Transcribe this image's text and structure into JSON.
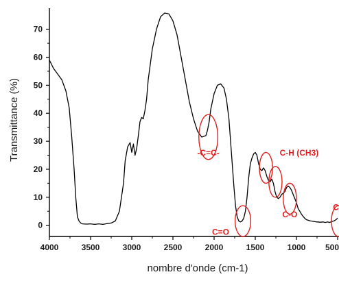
{
  "chart_data": {
    "type": "line",
    "title": "",
    "xlabel": "nombre d'onde (cm-1)",
    "ylabel": "Transmittance (%)",
    "xlim": [
      4000,
      500
    ],
    "ylim": [
      -4,
      78
    ],
    "x_reversed": true,
    "grid": false,
    "legend": "none",
    "line_color": "#000000",
    "annotation_color": "#e02020",
    "x_ticks": [
      4000,
      3500,
      3000,
      2500,
      2000,
      1500,
      1000,
      500
    ],
    "y_ticks": [
      0,
      10,
      20,
      30,
      40,
      50,
      60,
      70
    ],
    "series": [
      {
        "x": [
          4000,
          3950,
          3900,
          3850,
          3800,
          3760,
          3730,
          3700,
          3680,
          3660,
          3640,
          3620,
          3600,
          3550,
          3500,
          3450,
          3400,
          3350,
          3300,
          3250,
          3200,
          3150,
          3100,
          3080,
          3050,
          3020,
          3000,
          2980,
          2960,
          2940,
          2920,
          2900,
          2880,
          2860,
          2840,
          2820,
          2800,
          2750,
          2700,
          2650,
          2600,
          2550,
          2500,
          2450,
          2400,
          2350,
          2300,
          2250,
          2200,
          2150,
          2100,
          2080,
          2060,
          2040,
          2000,
          1960,
          1920,
          1880,
          1850,
          1820,
          1800,
          1780,
          1760,
          1740,
          1720,
          1700,
          1680,
          1660,
          1640,
          1620,
          1600,
          1580,
          1560,
          1540,
          1520,
          1500,
          1480,
          1460,
          1440,
          1420,
          1400,
          1380,
          1360,
          1340,
          1320,
          1300,
          1280,
          1260,
          1240,
          1220,
          1200,
          1180,
          1160,
          1140,
          1120,
          1100,
          1080,
          1060,
          1040,
          1020,
          1000,
          980,
          960,
          940,
          920,
          900,
          880,
          860,
          840,
          820,
          800,
          780,
          760,
          740,
          720,
          700,
          680,
          650,
          620,
          600,
          580,
          560,
          540,
          520,
          500
        ],
        "y": [
          59,
          56,
          54,
          52,
          48,
          42,
          32,
          20,
          10,
          3,
          1.5,
          0.8,
          0.5,
          0.4,
          0.5,
          0.3,
          0.5,
          0.3,
          0.6,
          0.8,
          1.5,
          5,
          15,
          23,
          28,
          29.5,
          26,
          29,
          25,
          27.5,
          32,
          37,
          38.5,
          38,
          41,
          45,
          52,
          63,
          70,
          74.5,
          75.8,
          75.5,
          73,
          68,
          60,
          52,
          44,
          38,
          33.5,
          31.5,
          32,
          34,
          37,
          41.5,
          47,
          50,
          50.5,
          49,
          45,
          38,
          30,
          22,
          14,
          7,
          3,
          1.5,
          1.2,
          1.5,
          2.5,
          5,
          10,
          17,
          22,
          24,
          25.5,
          26,
          25,
          22,
          20,
          19.5,
          20.5,
          19.5,
          17.5,
          16,
          15.5,
          16.5,
          15,
          12,
          10,
          9.5,
          10,
          11,
          11.5,
          12,
          13.5,
          14,
          13.5,
          12.5,
          11,
          9.5,
          8,
          6,
          5,
          4,
          3.2,
          2.5,
          2,
          1.8,
          1.6,
          1.5,
          1.4,
          1.3,
          1.2,
          1.2,
          1.1,
          1.1,
          1.2,
          1.0,
          1.2,
          1.0,
          1.2,
          1.4,
          1.6,
          2.0,
          2.5
        ]
      }
    ],
    "annotations": [
      {
        "label": "-C=C-",
        "x": 2070,
        "y": 31.5,
        "rx": 115,
        "ry": 8
      },
      {
        "label": "C=O",
        "x": 1650,
        "y": 1.5,
        "rx": 95,
        "ry": 5.5
      },
      {
        "label": "C-H (CH3)",
        "x": 1370,
        "y": 20.5,
        "rx": 80,
        "ry": 5.5
      },
      {
        "label": "",
        "x": 1255,
        "y": 15.5,
        "rx": 80,
        "ry": 5.5
      },
      {
        "label": "C-O",
        "x": 1080,
        "y": 9.5,
        "rx": 80,
        "ry": 5.5
      },
      {
        "label": "C-H",
        "x": 490,
        "y": 1.5,
        "rx": 85,
        "ry": 5.5
      }
    ]
  }
}
